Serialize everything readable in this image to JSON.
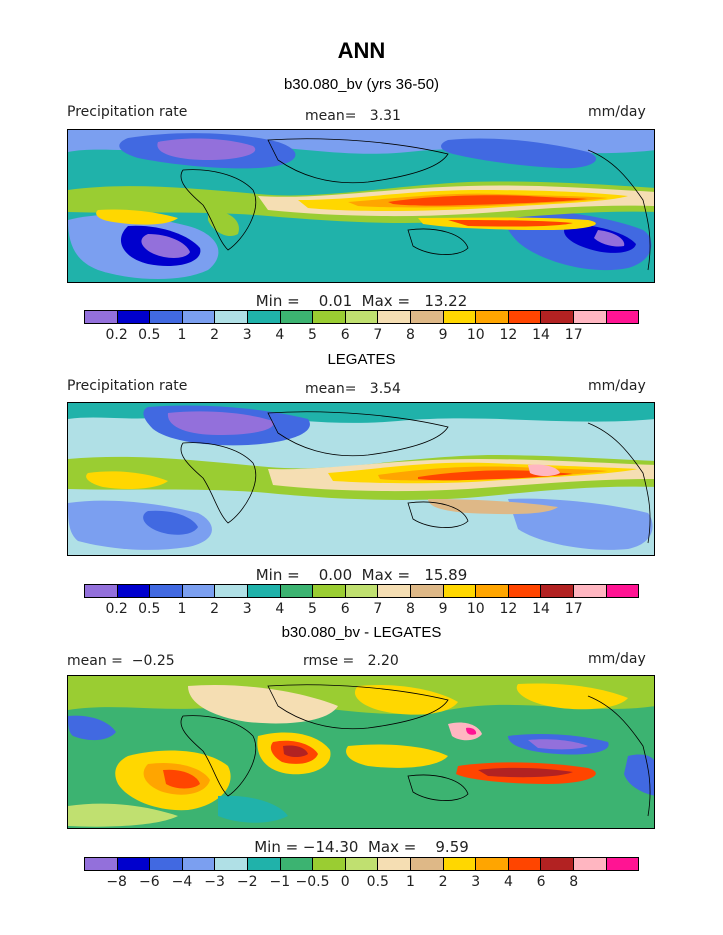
{
  "title": "ANN",
  "panels": [
    {
      "id": "model",
      "subtitle": "b30.080_bv (yrs 36-50)",
      "left_label": "Precipitation rate",
      "center_label": "mean=   3.31",
      "right_label": "mm/day",
      "stats": "Min =    0.01  Max =   13.22",
      "colorbar_ticks": [
        "0.2",
        "0.5",
        "1",
        "2",
        "3",
        "4",
        "5",
        "6",
        "7",
        "8",
        "9",
        "10",
        "12",
        "14",
        "17"
      ],
      "colors": [
        "#9370db",
        "#0000cd",
        "#4169e1",
        "#7b9ff0",
        "#b0e0e6",
        "#20b2aa",
        "#3cb371",
        "#9acd32",
        "#c0e070",
        "#f5deb3",
        "#deb887",
        "#ffd700",
        "#ffa500",
        "#ff4500",
        "#b22222",
        "#ffb6c1",
        "#ff1493"
      ]
    },
    {
      "id": "obs",
      "subtitle": "LEGATES",
      "left_label": "Precipitation rate",
      "center_label": "mean=   3.54",
      "right_label": "mm/day",
      "stats": "Min =    0.00  Max =   15.89",
      "colorbar_ticks": [
        "0.2",
        "0.5",
        "1",
        "2",
        "3",
        "4",
        "5",
        "6",
        "7",
        "8",
        "9",
        "10",
        "12",
        "14",
        "17"
      ],
      "colors": [
        "#9370db",
        "#0000cd",
        "#4169e1",
        "#7b9ff0",
        "#b0e0e6",
        "#20b2aa",
        "#3cb371",
        "#9acd32",
        "#c0e070",
        "#f5deb3",
        "#deb887",
        "#ffd700",
        "#ffa500",
        "#ff4500",
        "#b22222",
        "#ffb6c1",
        "#ff1493"
      ]
    },
    {
      "id": "diff",
      "subtitle": "b30.080_bv - LEGATES",
      "left_label": "mean =  −0.25",
      "center_label": "rmse =   2.20",
      "right_label": "mm/day",
      "stats": "Min = −14.30  Max =    9.59",
      "colorbar_ticks": [
        "−8",
        "−6",
        "−4",
        "−3",
        "−2",
        "−1",
        "−0.5",
        "0",
        "0.5",
        "1",
        "2",
        "3",
        "4",
        "6",
        "8"
      ],
      "colors": [
        "#9370db",
        "#0000cd",
        "#4169e1",
        "#7b9ff0",
        "#b0e0e6",
        "#20b2aa",
        "#3cb371",
        "#9acd32",
        "#c0e070",
        "#f5deb3",
        "#deb887",
        "#ffd700",
        "#ffa500",
        "#ff4500",
        "#b22222",
        "#ffb6c1",
        "#ff1493"
      ]
    }
  ]
}
